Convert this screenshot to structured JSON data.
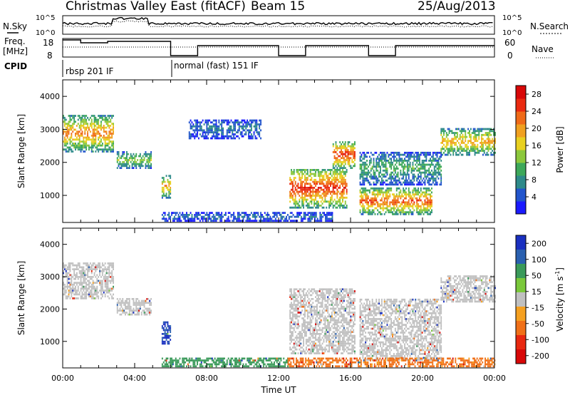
{
  "header": {
    "title": "Christmas Valley East (fitACF)",
    "beam": "Beam 15",
    "date": "25/Aug/2013"
  },
  "summary_panels": {
    "n_sky_label": "N.Sky",
    "n_search_label": "N.Search",
    "freq_label_line1": "Freq.",
    "freq_label_line2": "[MHz]",
    "nave_label": "Nave",
    "cpid_label": "CPID",
    "noise_ticks": [
      "10^5",
      "10^0"
    ],
    "noise_ticks_right": [
      "10^5",
      "10^0"
    ],
    "freq_ticks": [
      "18",
      "8"
    ],
    "nave_ticks": [
      "60",
      "0"
    ]
  },
  "cpid_segments": [
    {
      "label": "rbsp 201 IF",
      "start_hour": 0.0
    },
    {
      "label": "normal (fast) 151 IF",
      "start_hour": 6.0
    }
  ],
  "chart_data": [
    {
      "type": "heatmap",
      "panel": "power",
      "xlabel": "Time UT",
      "ylabel": "Slant Range [km]",
      "xlim": [
        0,
        24
      ],
      "ylim": [
        180,
        4500
      ],
      "x_ticks": [
        "00:00",
        "04:00",
        "08:00",
        "12:00",
        "16:00",
        "20:00",
        "00:00"
      ],
      "y_ticks": [
        1000,
        2000,
        3000,
        4000
      ],
      "colorbar": {
        "label": "Power [dB]",
        "ticks": [
          4,
          8,
          12,
          16,
          20,
          24,
          28
        ],
        "range": [
          0,
          30
        ],
        "colors": [
          "#1a1aff",
          "#2255cc",
          "#2e8a8a",
          "#3da85a",
          "#8cc83c",
          "#e8d020",
          "#f0a020",
          "#f06a18",
          "#ea2a10",
          "#d80808"
        ]
      },
      "echo_regions": [
        {
          "t_start": 0.0,
          "t_end": 2.8,
          "range_low": 2300,
          "range_high": 3400,
          "power_db": 20
        },
        {
          "t_start": 3.0,
          "t_end": 4.9,
          "range_low": 1800,
          "range_high": 2300,
          "power_db": 13
        },
        {
          "t_start": 5.5,
          "t_end": 6.0,
          "range_low": 900,
          "range_high": 1600,
          "power_db": 18
        },
        {
          "t_start": 7.0,
          "t_end": 11.0,
          "range_low": 2700,
          "range_high": 3300,
          "power_db": 6
        },
        {
          "t_start": 12.6,
          "t_end": 15.8,
          "range_low": 600,
          "range_high": 1800,
          "power_db": 24
        },
        {
          "t_start": 15.0,
          "t_end": 16.2,
          "range_low": 1800,
          "range_high": 2600,
          "power_db": 24
        },
        {
          "t_start": 16.5,
          "t_end": 20.5,
          "range_low": 400,
          "range_high": 1200,
          "power_db": 22
        },
        {
          "t_start": 16.5,
          "t_end": 21.0,
          "range_low": 1300,
          "range_high": 2300,
          "power_db": 10
        },
        {
          "t_start": 21.0,
          "t_end": 24.0,
          "range_low": 2200,
          "range_high": 3000,
          "power_db": 18
        },
        {
          "t_start": 5.5,
          "t_end": 15.0,
          "range_low": 200,
          "range_high": 450,
          "power_db": 6
        }
      ]
    },
    {
      "type": "heatmap",
      "panel": "velocity",
      "xlabel": "Time UT",
      "ylabel": "Slant Range [km]",
      "xlim": [
        0,
        24
      ],
      "ylim": [
        180,
        4500
      ],
      "x_ticks": [
        "00:00",
        "04:00",
        "08:00",
        "12:00",
        "16:00",
        "20:00",
        "00:00"
      ],
      "y_ticks": [
        1000,
        2000,
        3000,
        4000
      ],
      "colorbar": {
        "label": "Velocity [m s^-1]",
        "ticks": [
          200,
          100,
          50,
          15,
          -15,
          -50,
          -100,
          -200
        ],
        "colors": [
          "#1a30c0",
          "#2a60b0",
          "#3a9a5a",
          "#7ac83a",
          "#c0c0c0",
          "#f5a020",
          "#f07018",
          "#e82810",
          "#d80808"
        ]
      },
      "echo_regions": [
        {
          "t_start": 0.0,
          "t_end": 2.8,
          "range_low": 2300,
          "range_high": 3400,
          "velocity": 0
        },
        {
          "t_start": 3.0,
          "t_end": 4.9,
          "range_low": 1800,
          "range_high": 2300,
          "velocity": 0
        },
        {
          "t_start": 5.5,
          "t_end": 6.0,
          "range_low": 900,
          "range_high": 1600,
          "velocity": 150
        },
        {
          "t_start": 12.6,
          "t_end": 16.2,
          "range_low": 600,
          "range_high": 2600,
          "velocity": 0
        },
        {
          "t_start": 16.5,
          "t_end": 21.0,
          "range_low": 400,
          "range_high": 2300,
          "velocity": 0
        },
        {
          "t_start": 21.0,
          "t_end": 24.0,
          "range_low": 2200,
          "range_high": 3000,
          "velocity": 0
        },
        {
          "t_start": 5.5,
          "t_end": 12.5,
          "range_low": 200,
          "range_high": 450,
          "velocity": 60
        },
        {
          "t_start": 12.5,
          "t_end": 24.0,
          "range_low": 200,
          "range_high": 450,
          "velocity": -60
        }
      ]
    }
  ]
}
